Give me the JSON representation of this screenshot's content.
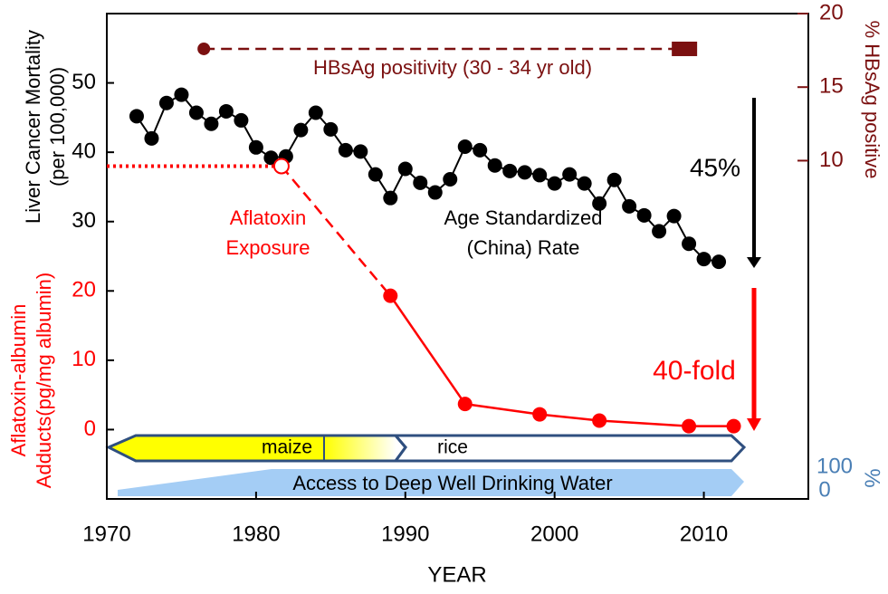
{
  "chart_data": {
    "type": "line",
    "xlabel": "YEAR",
    "ylabel_groups": [
      {
        "lines": [
          "Liver Cancer Mortality",
          "(per 100,000)"
        ],
        "color": "#000000"
      },
      {
        "lines": [
          "Aflatoxin-albumin",
          "Adducts(pg/mg albumin)"
        ],
        "color": "#ff0000"
      }
    ],
    "y2label": "% HBsAg positive",
    "y2label_color": "#7b1010",
    "xlim": [
      1970,
      2017
    ],
    "xticks": [
      1970,
      1980,
      1990,
      2000,
      2010
    ],
    "ylim": [
      -10,
      60
    ],
    "yticks": [
      0,
      10,
      20,
      30,
      40,
      50
    ],
    "ytick_colors": [
      "#ff0000",
      "#ff0000",
      "#ff0000",
      "#000000",
      "#000000",
      "#000000"
    ],
    "y2lim": [
      -13,
      20
    ],
    "y2ticks": [
      10,
      15,
      20
    ],
    "y2tick_color": "#7b1010",
    "series": [
      {
        "color": "#000000",
        "line_style": "solid",
        "marker": "filled",
        "x": [
          1972,
          1973,
          1974,
          1975,
          1976,
          1977,
          1978,
          1979,
          1980,
          1981,
          1982,
          1983,
          1984,
          1985,
          1986,
          1987,
          1988,
          1989,
          1990,
          1991,
          1992,
          1993,
          1994,
          1995,
          1996,
          1997,
          1998,
          1999,
          2000,
          2001,
          2002,
          2003,
          2004,
          2005,
          2006,
          2007,
          2008,
          2009,
          2010,
          2011
        ],
        "values": [
          45.2,
          42.0,
          47.1,
          48.3,
          45.7,
          44.1,
          45.9,
          44.6,
          40.7,
          39.2,
          39.4,
          43.2,
          45.7,
          43.3,
          40.3,
          40.1,
          36.8,
          33.4,
          37.6,
          35.6,
          34.2,
          36.1,
          40.8,
          40.3,
          38.1,
          37.3,
          37.1,
          36.7,
          35.5,
          36.8,
          35.5,
          32.6,
          36.0,
          32.2,
          30.9,
          28.6,
          30.8,
          26.8,
          24.6,
          24.2
        ]
      },
      {
        "color": "#ff0000",
        "x": [
          1970,
          1981.7,
          1989,
          1994,
          1999,
          2003,
          2009,
          2012
        ],
        "values": [
          38,
          38,
          19.3,
          3.7,
          2.2,
          1.3,
          0.5,
          0.5
        ],
        "segment_styles": [
          "dotted",
          "dashed",
          "solid",
          "solid",
          "solid",
          "solid",
          "solid"
        ],
        "markers": [
          "none",
          "hollow",
          "filled",
          "filled",
          "filled",
          "filled",
          "filled",
          "filled"
        ]
      },
      {
        "color": "#7b1010",
        "axis": "y2",
        "x": [
          1976.5,
          2008.7
        ],
        "values": [
          17.6,
          17.6
        ],
        "segment_styles": [
          "dashed"
        ],
        "markers": [
          "circle",
          "square"
        ]
      }
    ],
    "annotations": {
      "hbsag": "HBsAg positivity (30 - 34 yr old)",
      "aflatoxin": [
        "Aflatoxin",
        "Exposure"
      ],
      "rate": [
        "Age Standardized",
        "(China) Rate"
      ],
      "drop_mortality": "45%",
      "drop_aflatoxin": "40-fold",
      "maize": "maize",
      "rice": "rice",
      "water": "Access to Deep Well Drinking Water",
      "water_max": "100",
      "water_min": "0",
      "water_unit": "%"
    }
  }
}
